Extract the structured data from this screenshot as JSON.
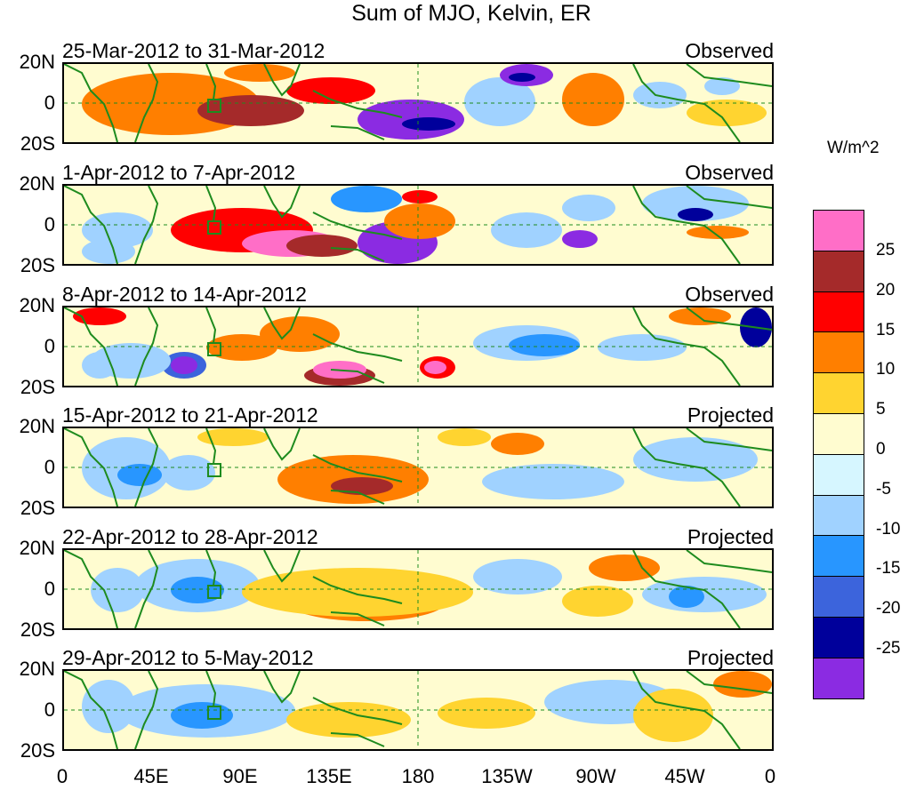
{
  "title": "Sum of MJO, Kelvin, ER",
  "units": "W/m^2",
  "latitude_labels": [
    "20N",
    "0",
    "20S"
  ],
  "longitude_labels": [
    "0",
    "45E",
    "90E",
    "135E",
    "180",
    "135W",
    "90W",
    "45W",
    "0"
  ],
  "legend_levels": [
    "25",
    "20",
    "15",
    "10",
    "5",
    "0",
    "-5",
    "-10",
    "-15",
    "-20",
    "-25"
  ],
  "legend_colors": [
    "#ff6ec7",
    "#a52a2a",
    "#ff0000",
    "#ff7f00",
    "#ffd430",
    "#fffcd0",
    "#d6f6ff",
    "#a0d2ff",
    "#2896ff",
    "#3c64dc",
    "#00009b",
    "#8b2be2"
  ],
  "colors": {
    "coast": "#1e8b1e",
    "frame": "#000000"
  },
  "panels": [
    {
      "period": "25-Mar-2012 to 31-Mar-2012",
      "status": "Observed"
    },
    {
      "period": "1-Apr-2012 to 7-Apr-2012",
      "status": "Observed"
    },
    {
      "period": "8-Apr-2012 to 14-Apr-2012",
      "status": "Observed"
    },
    {
      "period": "15-Apr-2012 to 21-Apr-2012",
      "status": "Projected"
    },
    {
      "period": "22-Apr-2012 to 28-Apr-2012",
      "status": "Projected"
    },
    {
      "period": "29-Apr-2012 to 5-May-2012",
      "status": "Projected"
    }
  ]
}
